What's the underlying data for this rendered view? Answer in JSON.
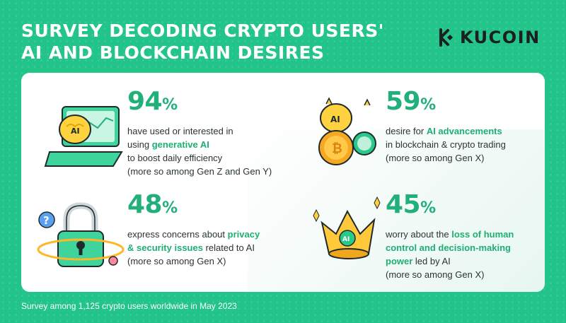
{
  "header": {
    "title_line1": "SURVEY DECODING CRYPTO USERS'",
    "title_line2": "AI AND BLOCKCHAIN DESIRES",
    "logo_text": "KUCOIN"
  },
  "stats": [
    {
      "value": "94",
      "unit": "%",
      "line1": "have used or interested in",
      "line2_pre": "using ",
      "line2_hl": "generative AI",
      "line3": "to boost daily efficiency",
      "line4": "(more so among Gen Z and Gen Y)",
      "icon": "laptop-ai-brain-icon"
    },
    {
      "value": "59",
      "unit": "%",
      "line1_pre": "desire for ",
      "line1_hl": "AI advancements",
      "line2": "in blockchain & crypto trading",
      "line3": "(more so among Gen X)",
      "icon": "ai-brain-coins-icon"
    },
    {
      "value": "48",
      "unit": "%",
      "line1_pre": "express concerns about ",
      "line1_hl": "privacy",
      "line2_hl": "& security issues",
      "line2_post": " related to AI",
      "line3": "(more so among Gen X)",
      "icon": "padlock-icon"
    },
    {
      "value": "45",
      "unit": "%",
      "line1_pre": "worry about the ",
      "line1_hl": "loss of human",
      "line2_hl": "control and decision-making",
      "line3_hl": "power",
      "line3_post": " led by AI",
      "line4": "(more so among Gen X)",
      "icon": "ai-crown-icon"
    }
  ],
  "footer": {
    "note": "Survey among 1,125 crypto users worldwide in May 2023"
  },
  "colors": {
    "background": "#22c48a",
    "accent": "#22b07a",
    "card": "#ffffff"
  }
}
